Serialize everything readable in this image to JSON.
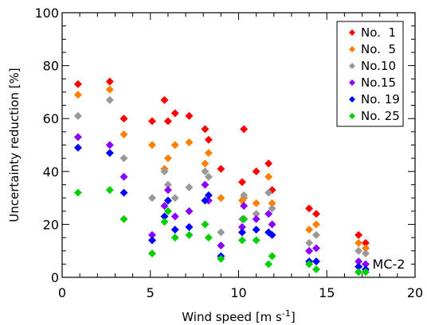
{
  "chart_data": {
    "type": "scatter",
    "xlabel": "Wind speed [m s⁻¹]",
    "ylabel": "Uncertainty  reduction  [%]",
    "xlim": [
      0,
      20
    ],
    "ylim": [
      0,
      100
    ],
    "xticks": [
      0,
      5,
      10,
      15,
      20
    ],
    "yticks": [
      0,
      20,
      40,
      60,
      80,
      100
    ],
    "x_minor_step": 1,
    "y_minor_step": 5,
    "grid": false,
    "legend_position": "top-right",
    "annotation": "MC-2",
    "x": [
      0.9,
      2.7,
      3.5,
      5.1,
      5.8,
      6.0,
      6.4,
      7.2,
      8.1,
      8.3,
      9.0,
      10.2,
      10.3,
      11.0,
      11.7,
      11.9,
      14.0,
      14.4,
      16.8,
      17.2
    ],
    "series": [
      {
        "name": "No.  1",
        "color": "#ff0000",
        "values": [
          73,
          74,
          60,
          59,
          67,
          59,
          62,
          61,
          56,
          52,
          41,
          36,
          56,
          40,
          43,
          33,
          26,
          24,
          16,
          13
        ]
      },
      {
        "name": "No.  5",
        "color": "#ff7f00",
        "values": [
          69,
          71,
          54,
          50,
          41,
          45,
          50,
          51,
          43,
          47,
          30,
          29,
          30,
          28,
          38,
          28,
          18,
          20,
          13,
          11
        ]
      },
      {
        "name": "No.10",
        "color": "#999999",
        "values": [
          61,
          67,
          45,
          30,
          40,
          35,
          30,
          34,
          40,
          38,
          17,
          22,
          31,
          24,
          32,
          26,
          13,
          16,
          10,
          9
        ]
      },
      {
        "name": "No.15",
        "color": "#8b00ff",
        "values": [
          53,
          50,
          38,
          16,
          27,
          33,
          23,
          25,
          35,
          29,
          12,
          19,
          27,
          22,
          24,
          20,
          10,
          11,
          6,
          5
        ]
      },
      {
        "name": "No. 19",
        "color": "#0000ff",
        "values": [
          49,
          47,
          32,
          14,
          23,
          29,
          18,
          19,
          29,
          31,
          8,
          17,
          22,
          18,
          17,
          16,
          6,
          6,
          4,
          3
        ]
      },
      {
        "name": "No. 25",
        "color": "#00d000",
        "values": [
          32,
          33,
          22,
          9,
          21,
          25,
          15,
          16,
          20,
          15,
          7,
          14,
          22,
          14,
          5,
          8,
          5,
          3,
          2,
          2
        ]
      }
    ]
  }
}
